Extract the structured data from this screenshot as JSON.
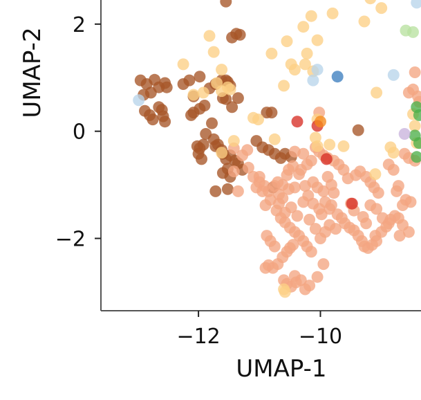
{
  "chart_data": {
    "type": "scatter",
    "xlabel": "UMAP-1",
    "ylabel": "UMAP-2",
    "xlim": [
      -13.6,
      -8.35
    ],
    "ylim": [
      -3.35,
      2.45
    ],
    "xticks": [
      -12,
      -10
    ],
    "yticks": [
      2,
      0,
      -2
    ],
    "xtick_labels": [
      "−12",
      "−10"
    ],
    "ytick_labels": [
      "2",
      "0",
      "−2"
    ],
    "grid": false,
    "series": [
      {
        "color": "#a65628",
        "points": [
          [
            -12.95,
            0.95
          ],
          [
            -12.85,
            0.88
          ],
          [
            -12.72,
            0.96
          ],
          [
            -12.65,
            0.82
          ],
          [
            -12.9,
            0.68
          ],
          [
            -12.78,
            0.72
          ],
          [
            -12.55,
            0.9
          ],
          [
            -12.52,
            0.82
          ],
          [
            -12.88,
            0.38
          ],
          [
            -12.8,
            0.3
          ],
          [
            -12.75,
            0.22
          ],
          [
            -12.65,
            0.45
          ],
          [
            -12.6,
            0.4
          ],
          [
            -12.58,
            0.28
          ],
          [
            -12.55,
            0.18
          ],
          [
            -12.25,
            0.88
          ],
          [
            -12.15,
            0.95
          ],
          [
            -12.08,
            0.65
          ],
          [
            -11.98,
            1.02
          ],
          [
            -11.9,
            0.48
          ],
          [
            -11.98,
            0.42
          ],
          [
            -12.08,
            0.35
          ],
          [
            -12.12,
            0.3
          ],
          [
            -11.82,
            0.8
          ],
          [
            -11.72,
            0.88
          ],
          [
            -11.62,
            0.95
          ],
          [
            -11.55,
            0.95
          ],
          [
            -11.52,
            0.92
          ],
          [
            -11.48,
            0.85
          ],
          [
            -11.55,
            0.6
          ],
          [
            -11.45,
            0.45
          ],
          [
            -11.6,
            0.62
          ],
          [
            -11.35,
            0.62
          ],
          [
            -11.45,
            1.75
          ],
          [
            -11.38,
            1.82
          ],
          [
            -11.32,
            1.8
          ],
          [
            -11.55,
            2.42
          ],
          [
            -11.78,
            0.15
          ],
          [
            -11.88,
            -0.05
          ],
          [
            -11.92,
            -0.25
          ],
          [
            -11.98,
            -0.32
          ],
          [
            -12.02,
            -0.28
          ],
          [
            -12.0,
            -0.42
          ],
          [
            -11.95,
            -0.52
          ],
          [
            -11.75,
            -0.15
          ],
          [
            -11.72,
            -0.28
          ],
          [
            -11.68,
            -0.25
          ],
          [
            -11.62,
            -0.35
          ],
          [
            -11.6,
            -0.42
          ],
          [
            -11.55,
            -0.52
          ],
          [
            -11.48,
            -0.45
          ],
          [
            -11.4,
            -0.55
          ],
          [
            -11.35,
            -0.6
          ],
          [
            -11.28,
            -0.72
          ],
          [
            -11.52,
            -0.7
          ],
          [
            -11.6,
            -0.78
          ],
          [
            -11.48,
            -0.85
          ],
          [
            -11.52,
            -1.08
          ],
          [
            -11.72,
            -1.12
          ],
          [
            -11.05,
            -0.18
          ],
          [
            -10.95,
            -0.3
          ],
          [
            -10.85,
            -0.35
          ],
          [
            -10.75,
            -0.42
          ],
          [
            -10.65,
            -0.5
          ],
          [
            -10.58,
            -0.42
          ],
          [
            -10.48,
            -0.48
          ],
          [
            -10.78,
            -1.05
          ],
          [
            -10.88,
            0.35
          ],
          [
            -10.8,
            0.35
          ],
          [
            -9.38,
            0.02
          ]
        ]
      },
      {
        "color": "#f4a582",
        "points": [
          [
            -11.42,
            -0.32
          ],
          [
            -11.18,
            -0.68
          ],
          [
            -11.1,
            -0.85
          ],
          [
            -11.0,
            -0.95
          ],
          [
            -10.92,
            -1.02
          ],
          [
            -10.85,
            -1.12
          ],
          [
            -10.95,
            -1.12
          ],
          [
            -10.75,
            -1.02
          ],
          [
            -10.7,
            -0.95
          ],
          [
            -10.62,
            -1.0
          ],
          [
            -10.52,
            -1.08
          ],
          [
            -10.42,
            -1.05
          ],
          [
            -10.35,
            -0.8
          ],
          [
            -10.25,
            -1.02
          ],
          [
            -10.12,
            -0.95
          ],
          [
            -10.05,
            -1.05
          ],
          [
            -9.95,
            -1.12
          ],
          [
            -9.88,
            -0.85
          ],
          [
            -9.82,
            -1.0
          ],
          [
            -9.78,
            -1.15
          ],
          [
            -9.85,
            -1.45
          ],
          [
            -9.92,
            -1.32
          ],
          [
            -9.82,
            -1.38
          ],
          [
            -9.72,
            -1.55
          ],
          [
            -9.65,
            -1.62
          ],
          [
            -9.6,
            -1.72
          ],
          [
            -9.52,
            -1.8
          ],
          [
            -9.45,
            -1.85
          ],
          [
            -9.38,
            -1.95
          ],
          [
            -9.32,
            -2.05
          ],
          [
            -9.28,
            -2.15
          ],
          [
            -9.22,
            -2.18
          ],
          [
            -9.15,
            -2.12
          ],
          [
            -9.08,
            -2.05
          ],
          [
            -9.1,
            -1.95
          ],
          [
            -9.0,
            -1.88
          ],
          [
            -8.92,
            -1.78
          ],
          [
            -8.85,
            -1.65
          ],
          [
            -8.78,
            -1.58
          ],
          [
            -8.72,
            -1.62
          ],
          [
            -8.65,
            -1.75
          ],
          [
            -8.55,
            -1.88
          ],
          [
            -8.7,
            -1.95
          ],
          [
            -9.05,
            -1.15
          ],
          [
            -9.12,
            -1.05
          ],
          [
            -9.18,
            -0.95
          ],
          [
            -9.25,
            -0.85
          ],
          [
            -9.35,
            -0.75
          ],
          [
            -9.42,
            -0.82
          ],
          [
            -9.55,
            -0.88
          ],
          [
            -9.62,
            -0.72
          ],
          [
            -9.7,
            -0.62
          ],
          [
            -9.78,
            -0.55
          ],
          [
            -9.88,
            -0.5
          ],
          [
            -9.95,
            -0.45
          ],
          [
            -10.02,
            -0.38
          ],
          [
            -10.08,
            -0.3
          ],
          [
            -10.15,
            -0.55
          ],
          [
            -10.22,
            -0.62
          ],
          [
            -10.32,
            -0.72
          ],
          [
            -10.45,
            -0.65
          ],
          [
            -10.52,
            -0.72
          ],
          [
            -10.55,
            -0.82
          ],
          [
            -10.62,
            -1.25
          ],
          [
            -10.68,
            -1.35
          ],
          [
            -10.72,
            -1.48
          ],
          [
            -10.65,
            -1.62
          ],
          [
            -10.58,
            -1.7
          ],
          [
            -10.5,
            -1.8
          ],
          [
            -10.42,
            -1.88
          ],
          [
            -10.35,
            -1.95
          ],
          [
            -10.28,
            -2.05
          ],
          [
            -10.22,
            -2.15
          ],
          [
            -10.15,
            -2.25
          ],
          [
            -10.45,
            -2.12
          ],
          [
            -10.5,
            -2.18
          ],
          [
            -10.55,
            -2.25
          ],
          [
            -10.62,
            -2.35
          ],
          [
            -10.7,
            -2.48
          ],
          [
            -10.78,
            -2.55
          ],
          [
            -10.85,
            -2.5
          ],
          [
            -10.9,
            -2.55
          ],
          [
            -10.6,
            -2.78
          ],
          [
            -10.55,
            -2.85
          ],
          [
            -10.48,
            -2.9
          ],
          [
            -10.4,
            -2.82
          ],
          [
            -10.32,
            -2.78
          ],
          [
            -10.42,
            -2.7
          ],
          [
            -10.25,
            -2.95
          ],
          [
            -10.18,
            -2.88
          ],
          [
            -10.05,
            -2.72
          ],
          [
            -9.95,
            -2.48
          ],
          [
            -9.85,
            -1.75
          ],
          [
            -9.75,
            -1.82
          ],
          [
            -10.75,
            -2.15
          ],
          [
            -10.82,
            -2.05
          ],
          [
            -10.88,
            -1.95
          ],
          [
            -11.2,
            -0.35
          ],
          [
            -11.28,
            -0.45
          ],
          [
            -11.35,
            -1.12
          ],
          [
            -11.42,
            -0.75
          ],
          [
            -10.02,
            0.35
          ],
          [
            -8.55,
            0.72
          ],
          [
            -8.48,
            0.78
          ],
          [
            -8.4,
            0.65
          ],
          [
            -8.38,
            0.55
          ],
          [
            -8.45,
            1.1
          ],
          [
            -8.62,
            -0.42
          ],
          [
            -8.55,
            -0.5
          ],
          [
            -8.45,
            -0.55
          ],
          [
            -8.8,
            -0.72
          ],
          [
            -8.88,
            -0.62
          ],
          [
            -8.72,
            -1.02
          ],
          [
            -8.75,
            -1.12
          ],
          [
            -8.65,
            -1.38
          ],
          [
            -8.6,
            -1.28
          ],
          [
            -8.52,
            -1.32
          ],
          [
            -10.42,
            -0.38
          ],
          [
            -10.28,
            -0.42
          ],
          [
            -10.18,
            -1.65
          ],
          [
            -10.08,
            -1.82
          ],
          [
            -10.0,
            -2.0
          ],
          [
            -9.92,
            -1.88
          ],
          [
            -9.98,
            -1.55
          ],
          [
            -10.02,
            -1.45
          ],
          [
            -10.12,
            -1.35
          ],
          [
            -10.2,
            -1.2
          ],
          [
            -10.28,
            -1.32
          ],
          [
            -10.38,
            -1.58
          ],
          [
            -10.48,
            -1.42
          ],
          [
            -10.58,
            -1.52
          ],
          [
            -10.68,
            -1.18
          ],
          [
            -10.82,
            -1.28
          ],
          [
            -10.9,
            -1.38
          ],
          [
            -11.0,
            -0.85
          ],
          [
            -11.05,
            -1.05
          ],
          [
            -9.5,
            -1.35
          ],
          [
            -9.45,
            -1.48
          ],
          [
            -9.3,
            -1.6
          ],
          [
            -9.25,
            -1.72
          ],
          [
            -9.18,
            -1.38
          ],
          [
            -9.08,
            -1.45
          ],
          [
            -8.98,
            -1.62
          ],
          [
            -8.88,
            -1.72
          ]
        ]
      },
      {
        "color": "#fdcf85",
        "points": [
          [
            -12.25,
            1.25
          ],
          [
            -11.82,
            1.78
          ],
          [
            -11.75,
            1.48
          ],
          [
            -11.62,
            1.15
          ],
          [
            -11.52,
            0.82
          ],
          [
            -11.7,
            0.9
          ],
          [
            -11.62,
            0.75
          ],
          [
            -11.92,
            0.72
          ],
          [
            -12.08,
            0.68
          ],
          [
            -10.8,
            1.45
          ],
          [
            -10.55,
            1.68
          ],
          [
            -10.48,
            1.25
          ],
          [
            -10.42,
            1.15
          ],
          [
            -10.25,
            1.25
          ],
          [
            -10.22,
            1.45
          ],
          [
            -10.28,
            1.95
          ],
          [
            -10.15,
            2.15
          ],
          [
            -10.12,
            1.12
          ],
          [
            -10.05,
            1.7
          ],
          [
            -9.8,
            2.2
          ],
          [
            -10.6,
            0.85
          ],
          [
            -10.08,
            -0.12
          ],
          [
            -10.05,
            -0.28
          ],
          [
            -9.85,
            -0.25
          ],
          [
            -9.62,
            -0.28
          ],
          [
            -9.08,
            0.72
          ],
          [
            -10.05,
            0.22
          ],
          [
            -8.85,
            -0.3
          ],
          [
            -8.8,
            -0.4
          ],
          [
            -9.1,
            -0.8
          ],
          [
            -10.75,
            -0.15
          ],
          [
            -11.62,
            -0.4
          ],
          [
            -11.42,
            -0.18
          ],
          [
            -11.48,
            0.78
          ],
          [
            -11.1,
            0.25
          ],
          [
            -11.02,
            0.22
          ],
          [
            -9.28,
            2.05
          ],
          [
            -9.18,
            2.48
          ],
          [
            -9.0,
            2.3
          ],
          [
            -10.6,
            -2.95
          ],
          [
            -10.58,
            -3.0
          ],
          [
            -8.48,
            0.32
          ],
          [
            -8.45,
            0.1
          ],
          [
            -8.42,
            -0.22
          ]
        ]
      },
      {
        "color": "#b8d5ea",
        "points": [
          [
            -12.98,
            0.58
          ],
          [
            -10.12,
            0.95
          ],
          [
            -10.05,
            1.15
          ],
          [
            -8.8,
            1.05
          ],
          [
            -8.42,
            2.4
          ]
        ]
      },
      {
        "color": "#3e7fbf",
        "points": [
          [
            -9.72,
            1.02
          ]
        ]
      },
      {
        "color": "#d73027",
        "points": [
          [
            -10.38,
            0.18
          ],
          [
            -10.05,
            0.1
          ],
          [
            -9.9,
            -0.52
          ],
          [
            -9.48,
            -1.35
          ]
        ]
      },
      {
        "color": "#f58a1f",
        "points": [
          [
            -10.0,
            0.18
          ]
        ]
      },
      {
        "color": "#4daf4a",
        "points": [
          [
            -8.42,
            0.45
          ],
          [
            -8.38,
            0.3
          ],
          [
            -8.45,
            -0.08
          ],
          [
            -8.42,
            -0.48
          ],
          [
            -8.38,
            -0.22
          ]
        ]
      },
      {
        "color": "#b8e2a0",
        "points": [
          [
            -8.6,
            1.88
          ],
          [
            -8.48,
            1.85
          ]
        ]
      },
      {
        "color": "#c9b3dc",
        "points": [
          [
            -8.62,
            -0.05
          ]
        ]
      }
    ]
  }
}
